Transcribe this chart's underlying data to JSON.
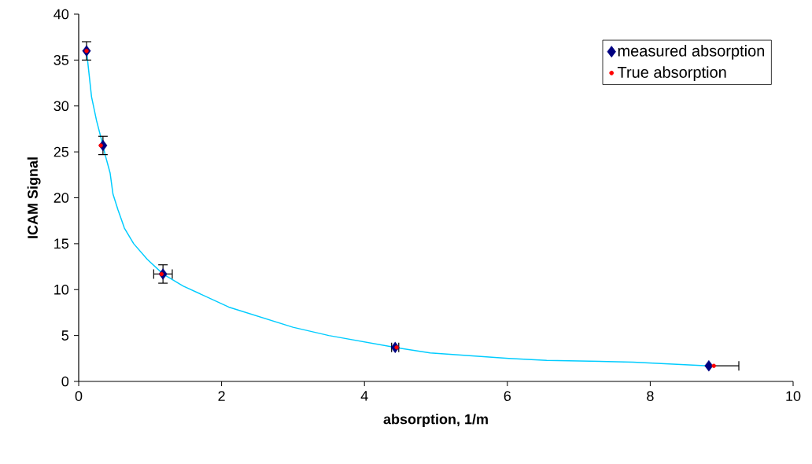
{
  "chart_data": {
    "type": "scatter",
    "xlabel": "absorption, 1/m",
    "ylabel": "ICAM Signal",
    "xlim": [
      0,
      10
    ],
    "ylim": [
      0,
      40
    ],
    "xticks": [
      0,
      2,
      4,
      6,
      8,
      10
    ],
    "yticks": [
      0,
      5,
      10,
      15,
      20,
      25,
      30,
      35,
      40
    ],
    "grid": false,
    "legend": "top right",
    "series": [
      {
        "type": "line",
        "color": "#00ccff",
        "marker": "none",
        "x": [
          0.11,
          0.18,
          0.25,
          0.34,
          0.37,
          0.44,
          0.48,
          0.55,
          0.64,
          0.77,
          0.96,
          1.18,
          1.46,
          2.1,
          3.0,
          3.5,
          4.43,
          4.92,
          6.02,
          6.55,
          7.76,
          8.82
        ],
        "values": [
          36,
          31,
          28.4,
          25.7,
          24.7,
          22.7,
          20.4,
          18.7,
          16.7,
          15,
          13.3,
          11.7,
          10.4,
          8.1,
          5.9,
          5,
          3.7,
          3.1,
          2.5,
          2.3,
          2.1,
          1.7
        ]
      },
      {
        "name": "measured absorption",
        "color": "#000080",
        "marker": "diamond",
        "x": [
          0.11,
          0.34,
          1.18,
          4.43,
          8.82
        ],
        "values": [
          36,
          25.7,
          11.7,
          3.7,
          1.7
        ],
        "errors": [
          1,
          1,
          1,
          null,
          null
        ],
        "xerrors": [
          null,
          null,
          0.13,
          0.05,
          [
            8.82,
            9.24
          ]
        ]
      },
      {
        "name": "True absorption",
        "color": "#ff0000",
        "marker": "circle",
        "x": [
          0.11,
          0.31,
          1.16,
          4.45,
          8.89
        ],
        "values": [
          36,
          25.7,
          11.7,
          3.7,
          1.7
        ]
      }
    ]
  }
}
